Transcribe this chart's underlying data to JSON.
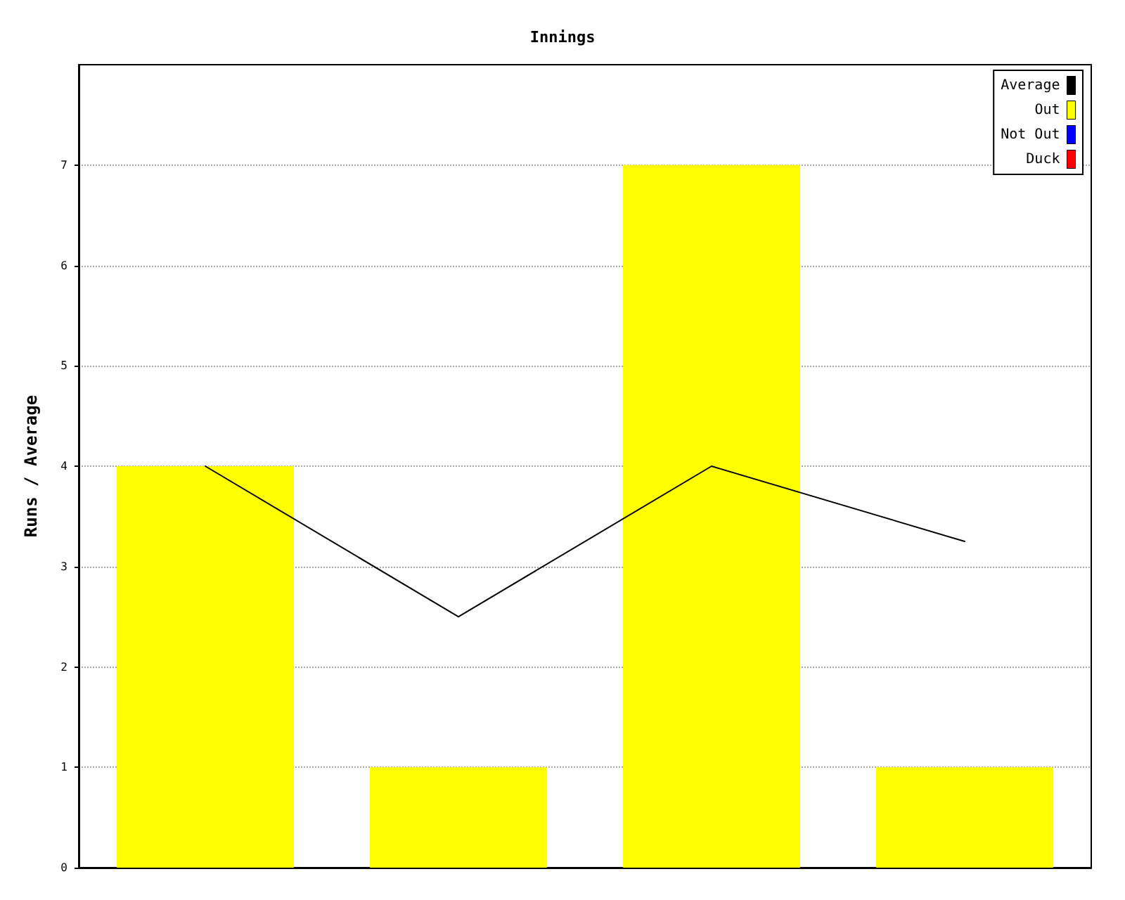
{
  "chart_data": {
    "type": "bar",
    "title": "Innings",
    "ylabel": "Runs / Average",
    "categories": [
      null,
      null,
      null,
      null
    ],
    "series": [
      {
        "name": "Average",
        "type": "line",
        "color": "#000000",
        "values": [
          4,
          2.5,
          4,
          3.25
        ]
      },
      {
        "name": "Out",
        "color": "#ffff00",
        "values": [
          4,
          1,
          7,
          1
        ]
      },
      {
        "name": "Not Out",
        "color": "#0000ff",
        "values": [
          null,
          null,
          null,
          null
        ]
      },
      {
        "name": "Duck",
        "color": "#ff0000",
        "values": [
          null,
          null,
          null,
          null
        ]
      }
    ],
    "stacked": true,
    "ylim": [
      0,
      8
    ],
    "yticks": [
      0,
      1,
      2,
      3,
      4,
      5,
      6,
      7
    ],
    "grid": "y",
    "legend": "top right",
    "marker": "none",
    "line_style": "solid"
  }
}
